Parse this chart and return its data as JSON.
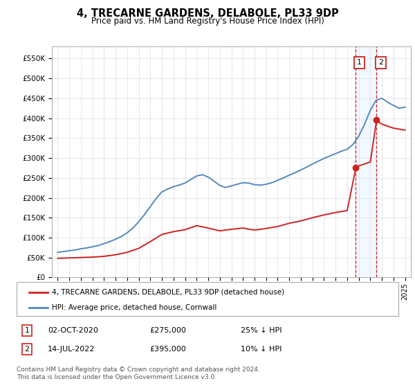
{
  "title": "4, TRECARNE GARDENS, DELABOLE, PL33 9DP",
  "subtitle": "Price paid vs. HM Land Registry's House Price Index (HPI)",
  "hpi_label": "HPI: Average price, detached house, Cornwall",
  "price_label": "4, TRECARNE GARDENS, DELABOLE, PL33 9DP (detached house)",
  "footer": "Contains HM Land Registry data © Crown copyright and database right 2024.\nThis data is licensed under the Open Government Licence v3.0.",
  "annotation1": {
    "num": "1",
    "date": "02-OCT-2020",
    "price": "£275,000",
    "pct": "25% ↓ HPI"
  },
  "annotation2": {
    "num": "2",
    "date": "14-JUL-2022",
    "price": "£395,000",
    "pct": "10% ↓ HPI"
  },
  "hpi_color": "#5588bb",
  "price_color": "#cc2222",
  "highlight_bg": "#ddeeff",
  "ylim": [
    0,
    580000
  ],
  "yticks": [
    0,
    50000,
    100000,
    150000,
    200000,
    250000,
    300000,
    350000,
    400000,
    450000,
    500000,
    550000
  ],
  "xlim_start": 1994.5,
  "xlim_end": 2025.5,
  "marker1_x": 2020.75,
  "marker1_y": 275000,
  "marker2_x": 2022.54,
  "marker2_y": 395000,
  "vline1_x": 2020.75,
  "vline2_x": 2022.54,
  "hpi_years": [
    1995,
    1995.5,
    1996,
    1996.5,
    1997,
    1997.5,
    1998,
    1998.5,
    1999,
    1999.5,
    2000,
    2000.5,
    2001,
    2001.5,
    2002,
    2002.5,
    2003,
    2003.5,
    2004,
    2004.5,
    2005,
    2005.5,
    2006,
    2006.5,
    2007,
    2007.5,
    2008,
    2008.5,
    2009,
    2009.5,
    2010,
    2010.5,
    2011,
    2011.5,
    2012,
    2012.5,
    2013,
    2013.5,
    2014,
    2014.5,
    2015,
    2015.5,
    2016,
    2016.5,
    2017,
    2017.5,
    2018,
    2018.5,
    2019,
    2019.5,
    2020,
    2020.5,
    2021,
    2021.5,
    2022,
    2022.5,
    2023,
    2023.5,
    2024,
    2024.5,
    2025
  ],
  "hpi_values": [
    63000,
    65000,
    67000,
    69000,
    72000,
    74000,
    77000,
    80000,
    85000,
    90000,
    96000,
    103000,
    112000,
    124000,
    140000,
    158000,
    178000,
    198000,
    215000,
    222000,
    228000,
    232000,
    237000,
    246000,
    255000,
    258000,
    252000,
    242000,
    231000,
    226000,
    230000,
    234000,
    238000,
    237000,
    233000,
    232000,
    234000,
    238000,
    244000,
    250000,
    257000,
    263000,
    270000,
    277000,
    285000,
    292000,
    299000,
    305000,
    311000,
    317000,
    322000,
    334000,
    355000,
    385000,
    420000,
    445000,
    450000,
    440000,
    432000,
    425000,
    428000
  ],
  "price_years": [
    1995,
    1996,
    1997,
    1998,
    1999,
    2000,
    2001,
    2002,
    2003,
    2004,
    2005,
    2006,
    2007,
    2008,
    2009,
    2010,
    2011,
    2012,
    2013,
    2014,
    2015,
    2016,
    2017,
    2018,
    2019,
    2020,
    2020.75,
    2021,
    2021.5,
    2022,
    2022.54,
    2023,
    2024,
    2025
  ],
  "price_values": [
    48000,
    49000,
    50000,
    51000,
    53000,
    57000,
    63000,
    73000,
    90000,
    108000,
    115000,
    120000,
    130000,
    124000,
    117000,
    121000,
    124000,
    119000,
    123000,
    128000,
    136000,
    142000,
    150000,
    157000,
    163000,
    168000,
    275000,
    280000,
    285000,
    290000,
    395000,
    385000,
    375000,
    370000
  ]
}
